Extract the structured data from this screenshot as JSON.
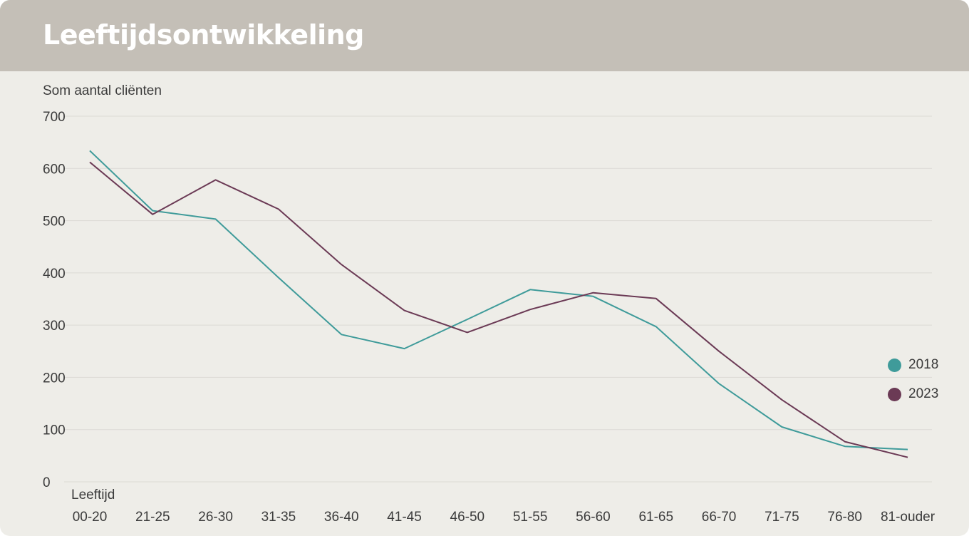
{
  "header": {
    "title": "Leeftijdsontwikkeling"
  },
  "chart_data": {
    "type": "line",
    "title": "Leeftijdsontwikkeling",
    "ylabel": "Som aantal cliënten",
    "xlabel": "Leeftijd",
    "ylim": [
      0,
      700
    ],
    "yticks": [
      "700",
      "600",
      "500",
      "400",
      "300",
      "200",
      "100",
      "0"
    ],
    "grid": true,
    "legend_position": "right",
    "categories": [
      "00-20",
      "21-25",
      "26-30",
      "31-35",
      "36-40",
      "41-45",
      "46-50",
      "51-55",
      "56-60",
      "61-65",
      "66-70",
      "71-75",
      "76-80",
      "81-ouder"
    ],
    "series": [
      {
        "name": "2018",
        "color": "#3f9b9a",
        "values": [
          634,
          519,
          503,
          391,
          282,
          255,
          311,
          368,
          355,
          297,
          188,
          105,
          68,
          62
        ]
      },
      {
        "name": "2023",
        "color": "#6b3a55",
        "values": [
          612,
          512,
          578,
          522,
          416,
          328,
          286,
          330,
          362,
          351,
          250,
          157,
          77,
          47
        ]
      }
    ]
  }
}
